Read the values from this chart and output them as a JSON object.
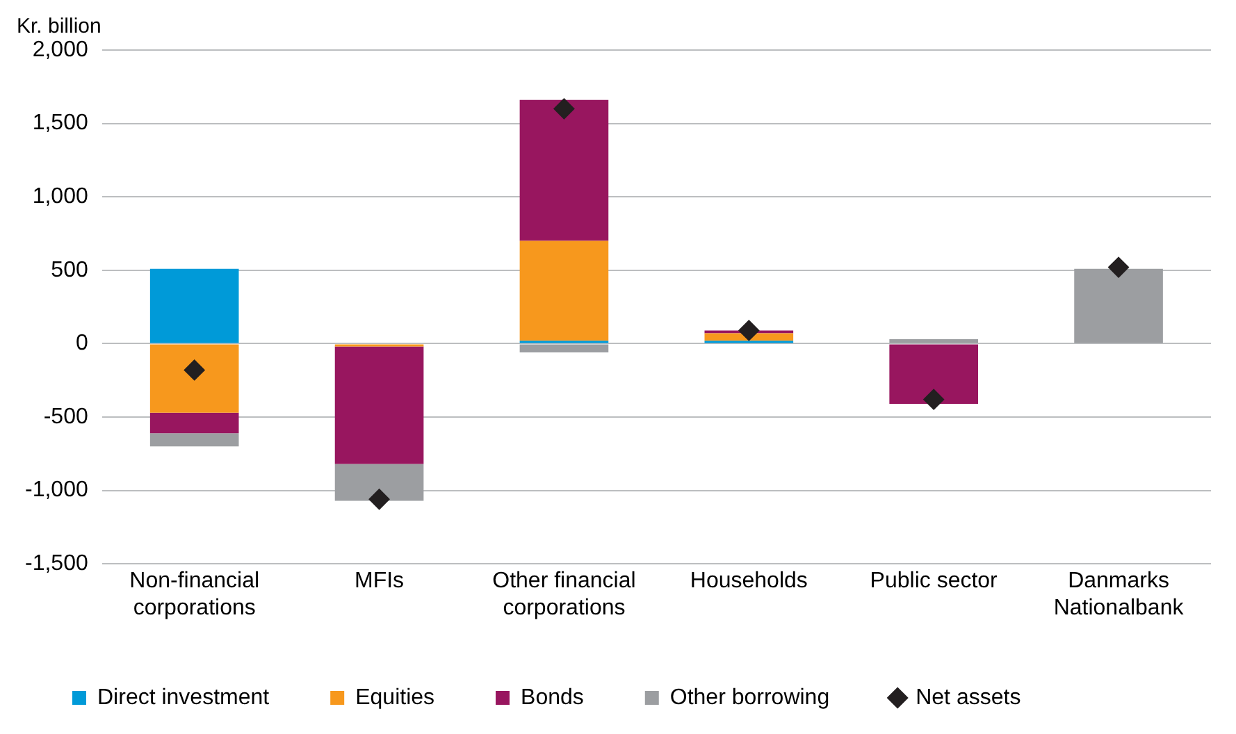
{
  "chart_data": {
    "type": "bar",
    "ylabel": "Kr. billion",
    "stacked": true,
    "grid": "y",
    "legend": "bottom",
    "categories": [
      "Non-financial corporations",
      "MFIs",
      "Other financial corporations",
      "Households",
      "Public sector",
      "Danmarks Nationalbank"
    ],
    "series": [
      {
        "name": "Direct investment",
        "color": "#009ad8",
        "values": [
          510,
          null,
          20,
          20,
          null,
          null
        ]
      },
      {
        "name": "Equities",
        "color": "#f7981d",
        "values": [
          -470,
          -20,
          680,
          50,
          null,
          null
        ]
      },
      {
        "name": "Bonds",
        "color": "#98165f",
        "values": [
          -140,
          -800,
          960,
          20,
          -410,
          null
        ]
      },
      {
        "name": "Other borrowing",
        "color": "#9c9ea1",
        "values": [
          -90,
          -250,
          -60,
          null,
          30,
          510
        ]
      },
      {
        "name": "Net assets",
        "type": "scatter",
        "marker": "diamond",
        "color": "#231f20",
        "values": [
          -180,
          -1060,
          1600,
          90,
          -380,
          520
        ]
      }
    ],
    "ylim": [
      -1500,
      2000
    ],
    "yticks": [
      {
        "value": -1500,
        "label": "-1,500"
      },
      {
        "value": -1000,
        "label": "-1,000"
      },
      -500,
      0,
      500,
      {
        "value": 1000,
        "label": "1,000"
      },
      {
        "value": 1500,
        "label": "1,500"
      },
      {
        "value": 2000,
        "label": "2,000"
      }
    ]
  }
}
